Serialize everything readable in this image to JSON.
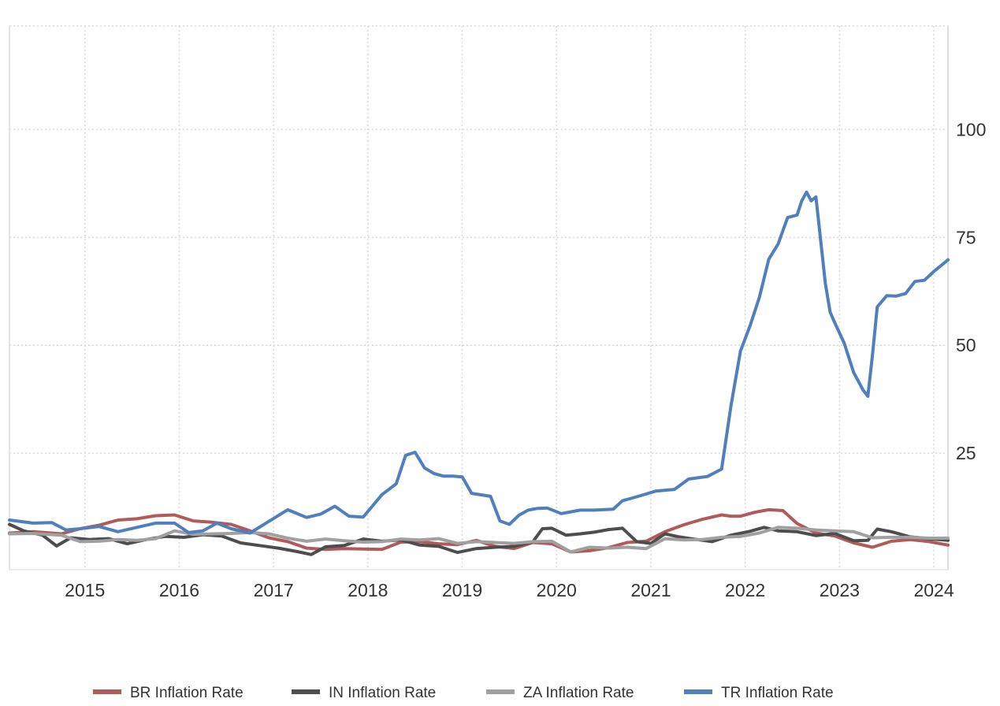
{
  "chart_data": {
    "type": "line",
    "title": "",
    "xlabel": "",
    "ylabel": "",
    "ylim": [
      -2,
      124
    ],
    "xlim": [
      2014.35,
      2024.3
    ],
    "grid": true,
    "legend_position": "bottom",
    "y_ticks": [
      25,
      50,
      75,
      100
    ],
    "y_tick_labels": [
      "25",
      "50",
      "75",
      "100"
    ],
    "x_ticks": [
      2015.15,
      2016.15,
      2017.15,
      2018.15,
      2019.15,
      2020.15,
      2021.15,
      2022.15,
      2023.15,
      2024.15
    ],
    "x_tick_labels": [
      "2015",
      "2016",
      "2017",
      "2018",
      "2019",
      "2020",
      "2021",
      "2022",
      "2023",
      "2024"
    ],
    "series": [
      {
        "name": "BR Inflation Rate",
        "color": "#b05a5a",
        "x": [
          2014.35,
          2014.6,
          2014.9,
          2015.1,
          2015.3,
          2015.5,
          2015.7,
          2015.9,
          2016.1,
          2016.3,
          2016.5,
          2016.7,
          2016.9,
          2017.1,
          2017.3,
          2017.5,
          2017.7,
          2017.9,
          2018.1,
          2018.3,
          2018.5,
          2018.7,
          2018.9,
          2019.1,
          2019.3,
          2019.5,
          2019.7,
          2019.9,
          2020.1,
          2020.3,
          2020.5,
          2020.7,
          2020.9,
          2021.1,
          2021.3,
          2021.5,
          2021.7,
          2021.9,
          2022.0,
          2022.1,
          2022.25,
          2022.4,
          2022.55,
          2022.7,
          2022.9,
          2023.1,
          2023.3,
          2023.5,
          2023.7,
          2023.9,
          2024.1,
          2024.3
        ],
        "y": [
          6.5,
          6.8,
          6.3,
          7.5,
          8.3,
          9.5,
          9.8,
          10.5,
          10.7,
          9.3,
          9.0,
          8.5,
          7.0,
          5.4,
          4.5,
          3.0,
          2.7,
          2.9,
          2.8,
          2.7,
          4.4,
          4.5,
          4.0,
          3.8,
          4.8,
          3.4,
          2.9,
          4.3,
          4.0,
          2.1,
          2.4,
          3.1,
          4.3,
          4.6,
          6.8,
          8.4,
          9.7,
          10.7,
          10.4,
          10.4,
          11.3,
          11.9,
          11.7,
          8.7,
          6.5,
          5.8,
          4.2,
          3.2,
          4.6,
          5.0,
          4.5,
          3.7
        ]
      },
      {
        "name": "IN Inflation Rate",
        "color": "#4d4d4d",
        "x": [
          2014.35,
          2014.5,
          2014.7,
          2014.85,
          2015.0,
          2015.2,
          2015.4,
          2015.6,
          2015.8,
          2016.0,
          2016.2,
          2016.4,
          2016.6,
          2016.8,
          2017.0,
          2017.2,
          2017.4,
          2017.55,
          2017.7,
          2017.9,
          2018.1,
          2018.3,
          2018.5,
          2018.7,
          2018.9,
          2019.1,
          2019.3,
          2019.5,
          2019.7,
          2019.9,
          2020.0,
          2020.1,
          2020.25,
          2020.4,
          2020.55,
          2020.7,
          2020.85,
          2021.0,
          2021.15,
          2021.3,
          2021.45,
          2021.6,
          2021.8,
          2022.0,
          2022.2,
          2022.35,
          2022.5,
          2022.7,
          2022.9,
          2023.1,
          2023.3,
          2023.45,
          2023.55,
          2023.7,
          2023.9,
          2024.1,
          2024.3
        ],
        "y": [
          8.5,
          7.0,
          6.0,
          3.5,
          5.4,
          5.0,
          5.2,
          4.0,
          5.0,
          5.7,
          5.5,
          6.1,
          5.8,
          4.2,
          3.6,
          3.0,
          2.2,
          1.5,
          3.3,
          3.6,
          5.1,
          4.6,
          4.9,
          3.7,
          3.4,
          2.0,
          2.9,
          3.2,
          3.4,
          4.5,
          7.5,
          7.6,
          6.0,
          6.3,
          6.7,
          7.3,
          7.6,
          4.5,
          4.1,
          6.3,
          5.6,
          5.1,
          4.5,
          6.0,
          6.9,
          7.8,
          7.0,
          6.8,
          5.9,
          6.4,
          4.7,
          4.8,
          7.4,
          6.8,
          5.6,
          5.2,
          4.8
        ]
      },
      {
        "name": "ZA Inflation Rate",
        "color": "#a0a0a0",
        "x": [
          2014.35,
          2014.6,
          2014.9,
          2015.1,
          2015.3,
          2015.5,
          2015.7,
          2015.9,
          2016.1,
          2016.3,
          2016.5,
          2016.7,
          2016.9,
          2017.1,
          2017.3,
          2017.5,
          2017.7,
          2017.9,
          2018.1,
          2018.3,
          2018.5,
          2018.7,
          2018.9,
          2019.1,
          2019.3,
          2019.5,
          2019.7,
          2019.9,
          2020.1,
          2020.3,
          2020.5,
          2020.7,
          2020.9,
          2021.1,
          2021.3,
          2021.5,
          2021.7,
          2021.9,
          2022.1,
          2022.3,
          2022.5,
          2022.7,
          2022.9,
          2023.1,
          2023.3,
          2023.5,
          2023.7,
          2023.9,
          2024.1,
          2024.3
        ],
        "y": [
          6.3,
          6.4,
          6.0,
          4.5,
          4.6,
          5.0,
          4.8,
          5.2,
          7.0,
          6.2,
          6.3,
          6.4,
          6.6,
          6.3,
          5.3,
          4.6,
          5.1,
          4.7,
          4.4,
          4.5,
          5.1,
          4.9,
          5.2,
          4.1,
          4.5,
          4.3,
          4.1,
          4.5,
          4.6,
          2.1,
          3.2,
          3.0,
          3.2,
          2.9,
          5.2,
          4.9,
          5.0,
          5.5,
          5.7,
          6.5,
          7.8,
          7.6,
          7.2,
          7.0,
          6.8,
          5.4,
          5.5,
          5.5,
          5.3,
          5.3
        ]
      },
      {
        "name": "TR Inflation Rate",
        "color": "#4f7fbd",
        "x": [
          2014.35,
          2014.6,
          2014.8,
          2014.95,
          2015.1,
          2015.3,
          2015.5,
          2015.7,
          2015.9,
          2016.1,
          2016.25,
          2016.4,
          2016.55,
          2016.7,
          2016.9,
          2017.1,
          2017.3,
          2017.5,
          2017.65,
          2017.8,
          2017.95,
          2018.1,
          2018.3,
          2018.45,
          2018.55,
          2018.65,
          2018.75,
          2018.85,
          2018.95,
          2019.05,
          2019.15,
          2019.25,
          2019.45,
          2019.55,
          2019.65,
          2019.75,
          2019.85,
          2019.95,
          2020.05,
          2020.2,
          2020.3,
          2020.4,
          2020.55,
          2020.75,
          2020.85,
          2021.0,
          2021.2,
          2021.4,
          2021.55,
          2021.75,
          2021.9,
          2022.0,
          2022.1,
          2022.2,
          2022.3,
          2022.4,
          2022.5,
          2022.6,
          2022.7,
          2022.75,
          2022.8,
          2022.85,
          2022.9,
          2023.0,
          2023.05,
          2023.1,
          2023.2,
          2023.3,
          2023.4,
          2023.45,
          2023.5,
          2023.55,
          2023.65,
          2023.75,
          2023.85,
          2023.95,
          2024.05,
          2024.15,
          2024.3
        ],
        "y": [
          9.5,
          8.8,
          8.9,
          7.2,
          7.5,
          8.0,
          6.8,
          7.8,
          8.8,
          8.8,
          6.6,
          7.0,
          8.8,
          7.5,
          6.5,
          9.2,
          11.9,
          10.1,
          10.9,
          12.7,
          10.4,
          10.2,
          15.4,
          17.9,
          24.5,
          25.2,
          21.6,
          20.3,
          19.7,
          19.7,
          19.5,
          15.7,
          15.0,
          9.3,
          8.5,
          10.6,
          11.8,
          12.2,
          12.3,
          11.0,
          11.4,
          11.8,
          11.8,
          12.0,
          14.0,
          14.9,
          16.2,
          16.6,
          19.0,
          19.6,
          21.3,
          36.1,
          48.7,
          54.4,
          61.1,
          69.97,
          73.5,
          79.6,
          80.2,
          83.5,
          85.5,
          83.5,
          84.4,
          64.3,
          57.7,
          55.2,
          50.5,
          43.7,
          39.6,
          38.2,
          47.8,
          58.9,
          61.5,
          61.4,
          61.98,
          64.8,
          65.07,
          67.1,
          69.8
        ]
      }
    ]
  }
}
